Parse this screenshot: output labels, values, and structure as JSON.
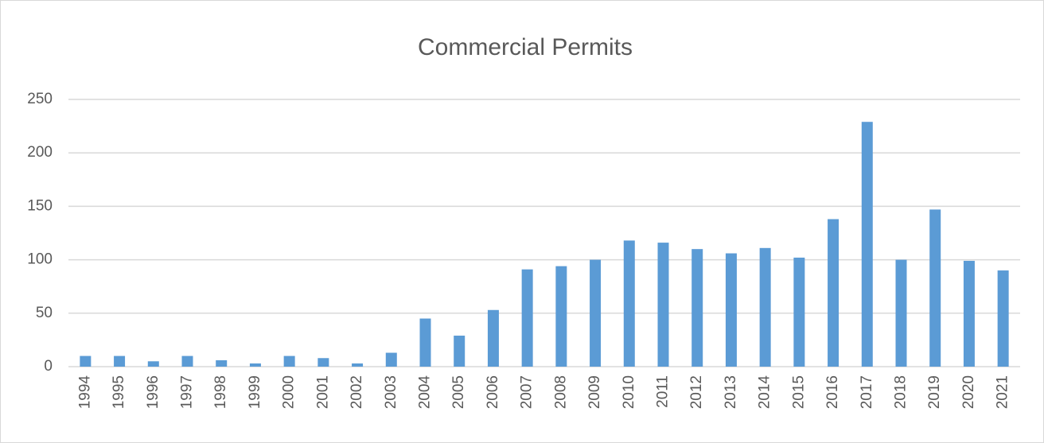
{
  "chart_data": {
    "type": "bar",
    "title": "Commercial Permits",
    "categories": [
      "1994",
      "1995",
      "1996",
      "1997",
      "1998",
      "1999",
      "2000",
      "2001",
      "2002",
      "2003",
      "2004",
      "2005",
      "2006",
      "2007",
      "2008",
      "2009",
      "2010",
      "2011",
      "2012",
      "2013",
      "2014",
      "2015",
      "2016",
      "2017",
      "2018",
      "2019",
      "2020",
      "2021"
    ],
    "values": [
      10,
      10,
      5,
      10,
      6,
      3,
      10,
      8,
      3,
      13,
      45,
      29,
      53,
      91,
      94,
      100,
      118,
      116,
      110,
      106,
      111,
      102,
      138,
      229,
      100,
      147,
      99,
      90
    ],
    "color": "#5b9bd5",
    "ylim": [
      0,
      250
    ],
    "yticks": [
      0,
      50,
      100,
      150,
      200,
      250
    ],
    "grid": true
  }
}
